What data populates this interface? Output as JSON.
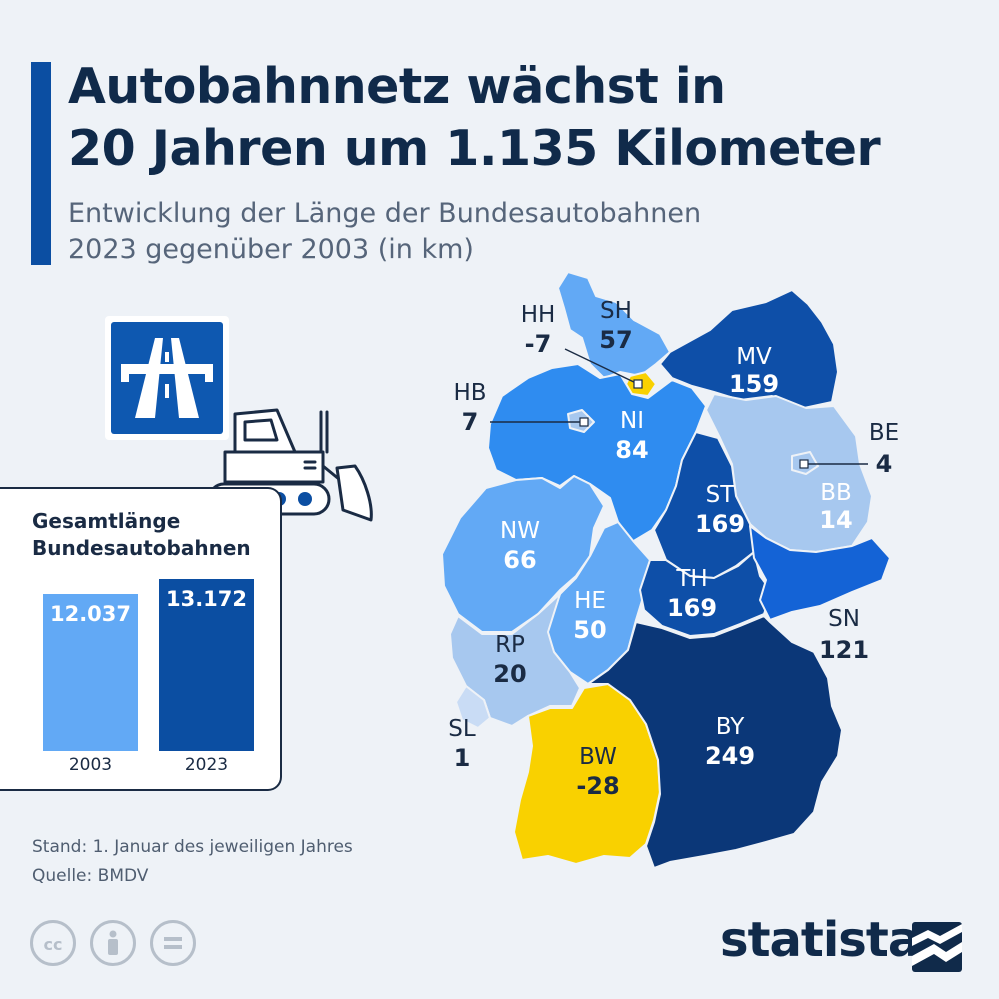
{
  "header": {
    "title_line1": "Autobahnnetz wächst in",
    "title_line2": "20 Jahren um 1.135 Kilometer",
    "subtitle_line1": "Entwicklung der Länge der Bundesautobahnen",
    "subtitle_line2": "2023 gegenüber 2003 (in km)"
  },
  "chart_data": [
    {
      "type": "map",
      "regions": [
        {
          "code": "SH",
          "value": 57,
          "value_label": "57"
        },
        {
          "code": "HH",
          "value": -7,
          "value_label": "-7"
        },
        {
          "code": "MV",
          "value": 159,
          "value_label": "159"
        },
        {
          "code": "HB",
          "value": 7,
          "value_label": "7"
        },
        {
          "code": "NI",
          "value": 84,
          "value_label": "84"
        },
        {
          "code": "BE",
          "value": 4,
          "value_label": "4"
        },
        {
          "code": "ST",
          "value": 169,
          "value_label": "169"
        },
        {
          "code": "BB",
          "value": 14,
          "value_label": "14"
        },
        {
          "code": "NW",
          "value": 66,
          "value_label": "66"
        },
        {
          "code": "TH",
          "value": 169,
          "value_label": "169"
        },
        {
          "code": "HE",
          "value": 50,
          "value_label": "50"
        },
        {
          "code": "SN",
          "value": 121,
          "value_label": "121"
        },
        {
          "code": "RP",
          "value": 20,
          "value_label": "20"
        },
        {
          "code": "SL",
          "value": 1,
          "value_label": "1"
        },
        {
          "code": "BW",
          "value": -28,
          "value_label": "-28"
        },
        {
          "code": "BY",
          "value": 249,
          "value_label": "249"
        }
      ],
      "colors": {
        "decline": "#f9d100",
        "very_low": "#c9dcf5",
        "low": "#a7c8ef",
        "medium_low": "#62a9f5",
        "medium": "#2f8cf0",
        "medium_high": "#1463d6",
        "high": "#0e4fa8",
        "highest": "#0b3778"
      }
    },
    {
      "type": "bar",
      "title_line1": "Gesamtlänge",
      "title_line2": "Bundesautobahnen",
      "categories": [
        "2003",
        "2023"
      ],
      "values": [
        12037,
        13172
      ],
      "value_labels": [
        "12.037",
        "13.172"
      ],
      "colors": [
        "#62a9f5",
        "#0b4ea2"
      ]
    }
  ],
  "footer": {
    "note": "Stand: 1. Januar des jeweiligen Jahres",
    "source": "Quelle: BMDV",
    "logo": "statista"
  },
  "icons": {
    "autobahn_sign": "autobahn-sign-icon",
    "bulldozer": "bulldozer-icon",
    "cc": "cc-icon",
    "attribution": "attribution-icon",
    "noderivs": "noderivs-icon"
  }
}
